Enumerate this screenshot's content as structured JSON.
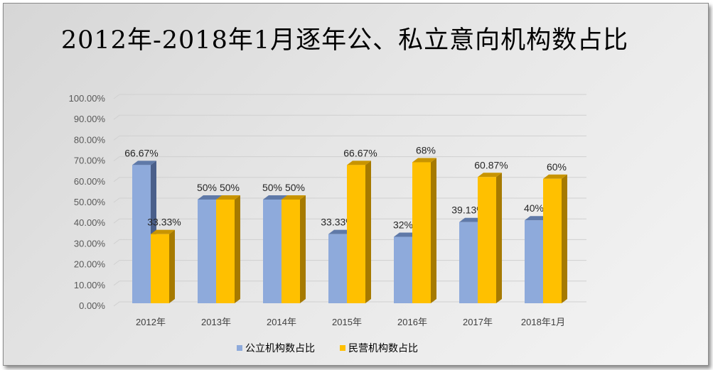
{
  "chart_data": {
    "type": "bar",
    "title": "2012年-2018年1月逐年公、私立意向机构数占比",
    "categories": [
      "2012年",
      "2013年",
      "2014年",
      "2015年",
      "2016年",
      "2017年",
      "2018年1月"
    ],
    "series": [
      {
        "name": "公立机构数占比",
        "values": [
          66.67,
          50,
          50,
          33.33,
          32,
          39.13,
          40
        ],
        "labels": [
          "66.67%",
          "50%",
          "50%",
          "33.33%",
          "32%",
          "39.13%",
          "40%"
        ],
        "color": "#8EAADB",
        "side": "#4A5F8A",
        "top": "#5F79A8"
      },
      {
        "name": "民营机构数占比",
        "values": [
          33.33,
          50,
          50,
          66.67,
          68,
          60.87,
          60
        ],
        "labels": [
          "33.33%",
          "50%",
          "50%",
          "66.67%",
          "68%",
          "60.87%",
          "60%"
        ],
        "color": "#FFC000",
        "side": "#A67A00",
        "top": "#C89400"
      }
    ],
    "yticks": [
      "0.00%",
      "10.00%",
      "20.00%",
      "30.00%",
      "40.00%",
      "50.00%",
      "60.00%",
      "70.00%",
      "80.00%",
      "90.00%",
      "100.00%"
    ],
    "ylim": [
      0,
      100
    ],
    "grid": true,
    "legend": "bottom"
  }
}
